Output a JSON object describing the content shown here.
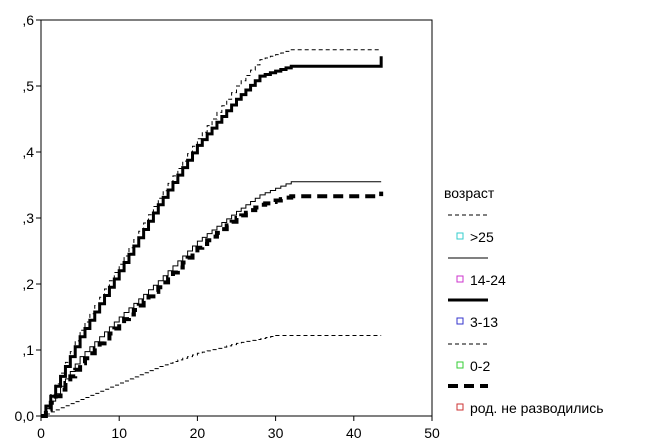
{
  "chart_data": {
    "type": "line",
    "step": true,
    "xlim": [
      0,
      50
    ],
    "ylim": [
      0,
      0.6
    ],
    "x_ticks": [
      0,
      10,
      20,
      30,
      40,
      50
    ],
    "x_tick_labels": [
      "0",
      "10",
      "20",
      "30",
      "40",
      "50"
    ],
    "y_ticks": [
      0,
      0.1,
      0.2,
      0.3,
      0.4,
      0.5,
      0.6
    ],
    "y_tick_labels": [
      "0,0",
      ",1",
      ",2",
      ",3",
      ",4",
      ",5",
      ",6"
    ],
    "legend_title": "возраст",
    "legend_position": "right",
    "series": [
      {
        "name": ">25",
        "line_style": "dashed-thin",
        "marker_color": "#33cccc",
        "points": [
          [
            0,
            0
          ],
          [
            5,
            0.13
          ],
          [
            10,
            0.23
          ],
          [
            15,
            0.33
          ],
          [
            20,
            0.42
          ],
          [
            25,
            0.5
          ],
          [
            28,
            0.54
          ],
          [
            32,
            0.555
          ],
          [
            43.5,
            0.555
          ]
        ]
      },
      {
        "name": "14-24",
        "line_style": "solid-thin",
        "marker_color": "#cc33cc",
        "points": [
          [
            0,
            0
          ],
          [
            5,
            0.09
          ],
          [
            10,
            0.15
          ],
          [
            15,
            0.205
          ],
          [
            20,
            0.265
          ],
          [
            25,
            0.31
          ],
          [
            28,
            0.335
          ],
          [
            32,
            0.355
          ],
          [
            43.5,
            0.355
          ]
        ]
      },
      {
        "name": "3-13",
        "line_style": "solid-thick",
        "marker_color": "#3333cc",
        "points": [
          [
            0,
            0
          ],
          [
            5,
            0.12
          ],
          [
            10,
            0.22
          ],
          [
            15,
            0.32
          ],
          [
            20,
            0.41
          ],
          [
            25,
            0.48
          ],
          [
            28,
            0.515
          ],
          [
            32,
            0.53
          ],
          [
            43.5,
            0.53
          ],
          [
            43.5,
            0.545
          ]
        ]
      },
      {
        "name": "0-2",
        "line_style": "dashed-thin",
        "marker_color": "#33cc33",
        "points": [
          [
            0,
            0
          ],
          [
            5,
            0.025
          ],
          [
            10,
            0.05
          ],
          [
            15,
            0.075
          ],
          [
            20,
            0.095
          ],
          [
            25,
            0.11
          ],
          [
            30,
            0.122
          ],
          [
            43.5,
            0.122
          ]
        ]
      },
      {
        "name": "род. не разводились",
        "line_style": "dashed-thick",
        "marker_color": "#cc3333",
        "points": [
          [
            0,
            0
          ],
          [
            5,
            0.08
          ],
          [
            10,
            0.14
          ],
          [
            15,
            0.195
          ],
          [
            20,
            0.255
          ],
          [
            25,
            0.3
          ],
          [
            28,
            0.32
          ],
          [
            32,
            0.333
          ],
          [
            43.5,
            0.333
          ],
          [
            43.5,
            0.34
          ]
        ]
      }
    ]
  }
}
